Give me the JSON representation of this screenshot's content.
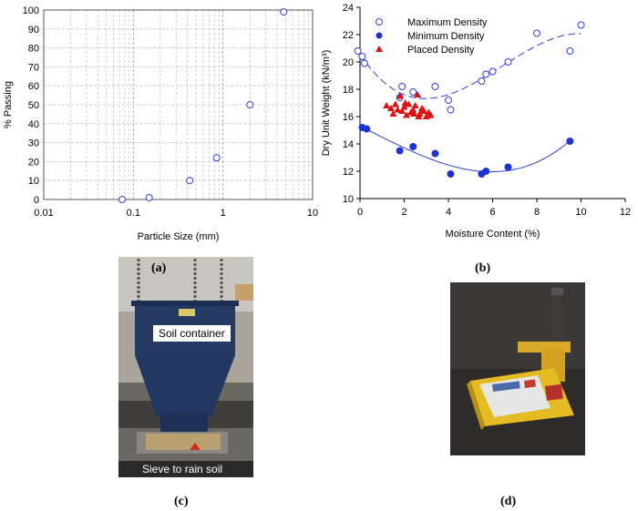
{
  "captions": {
    "a": "(a)",
    "b": "(b)",
    "c": "(c)",
    "d": "(d)"
  },
  "photo_c": {
    "label_top": "Soil container",
    "label_bottom": "Sieve to rain soil"
  },
  "chart_data": [
    {
      "type": "scatter",
      "xscale": "log",
      "xlabel": "Particle Size (mm)",
      "ylabel": "% Passing",
      "xlim": [
        0.01,
        10
      ],
      "ylim": [
        0,
        100
      ],
      "xticks": [
        "0.01",
        "0.1",
        "1",
        "10"
      ],
      "yticks": [
        "0",
        "10",
        "20",
        "30",
        "40",
        "50",
        "60",
        "70",
        "80",
        "90",
        "100"
      ],
      "grid": true,
      "series": [
        {
          "x": [
            0.075,
            0.15,
            0.425,
            0.85,
            2.0,
            4.75
          ],
          "y": [
            0,
            1,
            10,
            22,
            50,
            99
          ]
        }
      ]
    },
    {
      "type": "scatter",
      "xlabel": "Moisture Content (%)",
      "ylabel": "Dry Unit Weight (kN/m³)",
      "xlim": [
        0,
        12
      ],
      "ylim": [
        10,
        24
      ],
      "xticks": [
        "0",
        "2",
        "4",
        "6",
        "8",
        "10",
        "12"
      ],
      "yticks": [
        "10",
        "12",
        "14",
        "16",
        "18",
        "20",
        "22",
        "24"
      ],
      "legend": [
        "Maximum Density",
        "Minimum Density",
        "Placed Density"
      ],
      "series": [
        {
          "name": "Maximum Density",
          "marker": "open-circle",
          "x": [
            -0.1,
            0.1,
            0.2,
            1.8,
            1.9,
            2.4,
            3.4,
            4.0,
            4.1,
            5.5,
            5.7,
            6.0,
            6.7,
            8.0,
            9.5,
            10.0
          ],
          "y": [
            20.8,
            20.4,
            19.9,
            17.4,
            18.2,
            17.8,
            18.2,
            17.2,
            16.5,
            18.6,
            19.1,
            19.3,
            20.0,
            22.1,
            20.8,
            22.7
          ]
        },
        {
          "name": "Minimum Density",
          "marker": "filled-circle",
          "x": [
            0.1,
            0.3,
            1.8,
            2.4,
            3.4,
            4.1,
            5.5,
            5.7,
            6.7,
            9.5
          ],
          "y": [
            15.2,
            15.1,
            13.5,
            13.8,
            13.3,
            11.8,
            11.8,
            12.0,
            12.3,
            14.2
          ]
        },
        {
          "name": "Placed Density",
          "marker": "filled-triangle",
          "x": [
            1.2,
            1.4,
            1.5,
            1.7,
            1.8,
            1.9,
            2.0,
            2.1,
            2.2,
            2.3,
            2.4,
            2.5,
            2.6,
            2.7,
            2.8,
            2.9,
            3.0,
            3.1,
            3.2,
            1.6,
            2.05,
            2.45,
            2.65,
            2.85
          ],
          "y": [
            16.8,
            16.6,
            16.2,
            16.5,
            17.5,
            16.4,
            16.7,
            16.1,
            16.9,
            16.3,
            16.5,
            16.8,
            17.6,
            16.2,
            16.6,
            16.4,
            16.0,
            16.3,
            16.1,
            16.9,
            17.0,
            16.2,
            16.0,
            16.5
          ]
        }
      ]
    }
  ]
}
